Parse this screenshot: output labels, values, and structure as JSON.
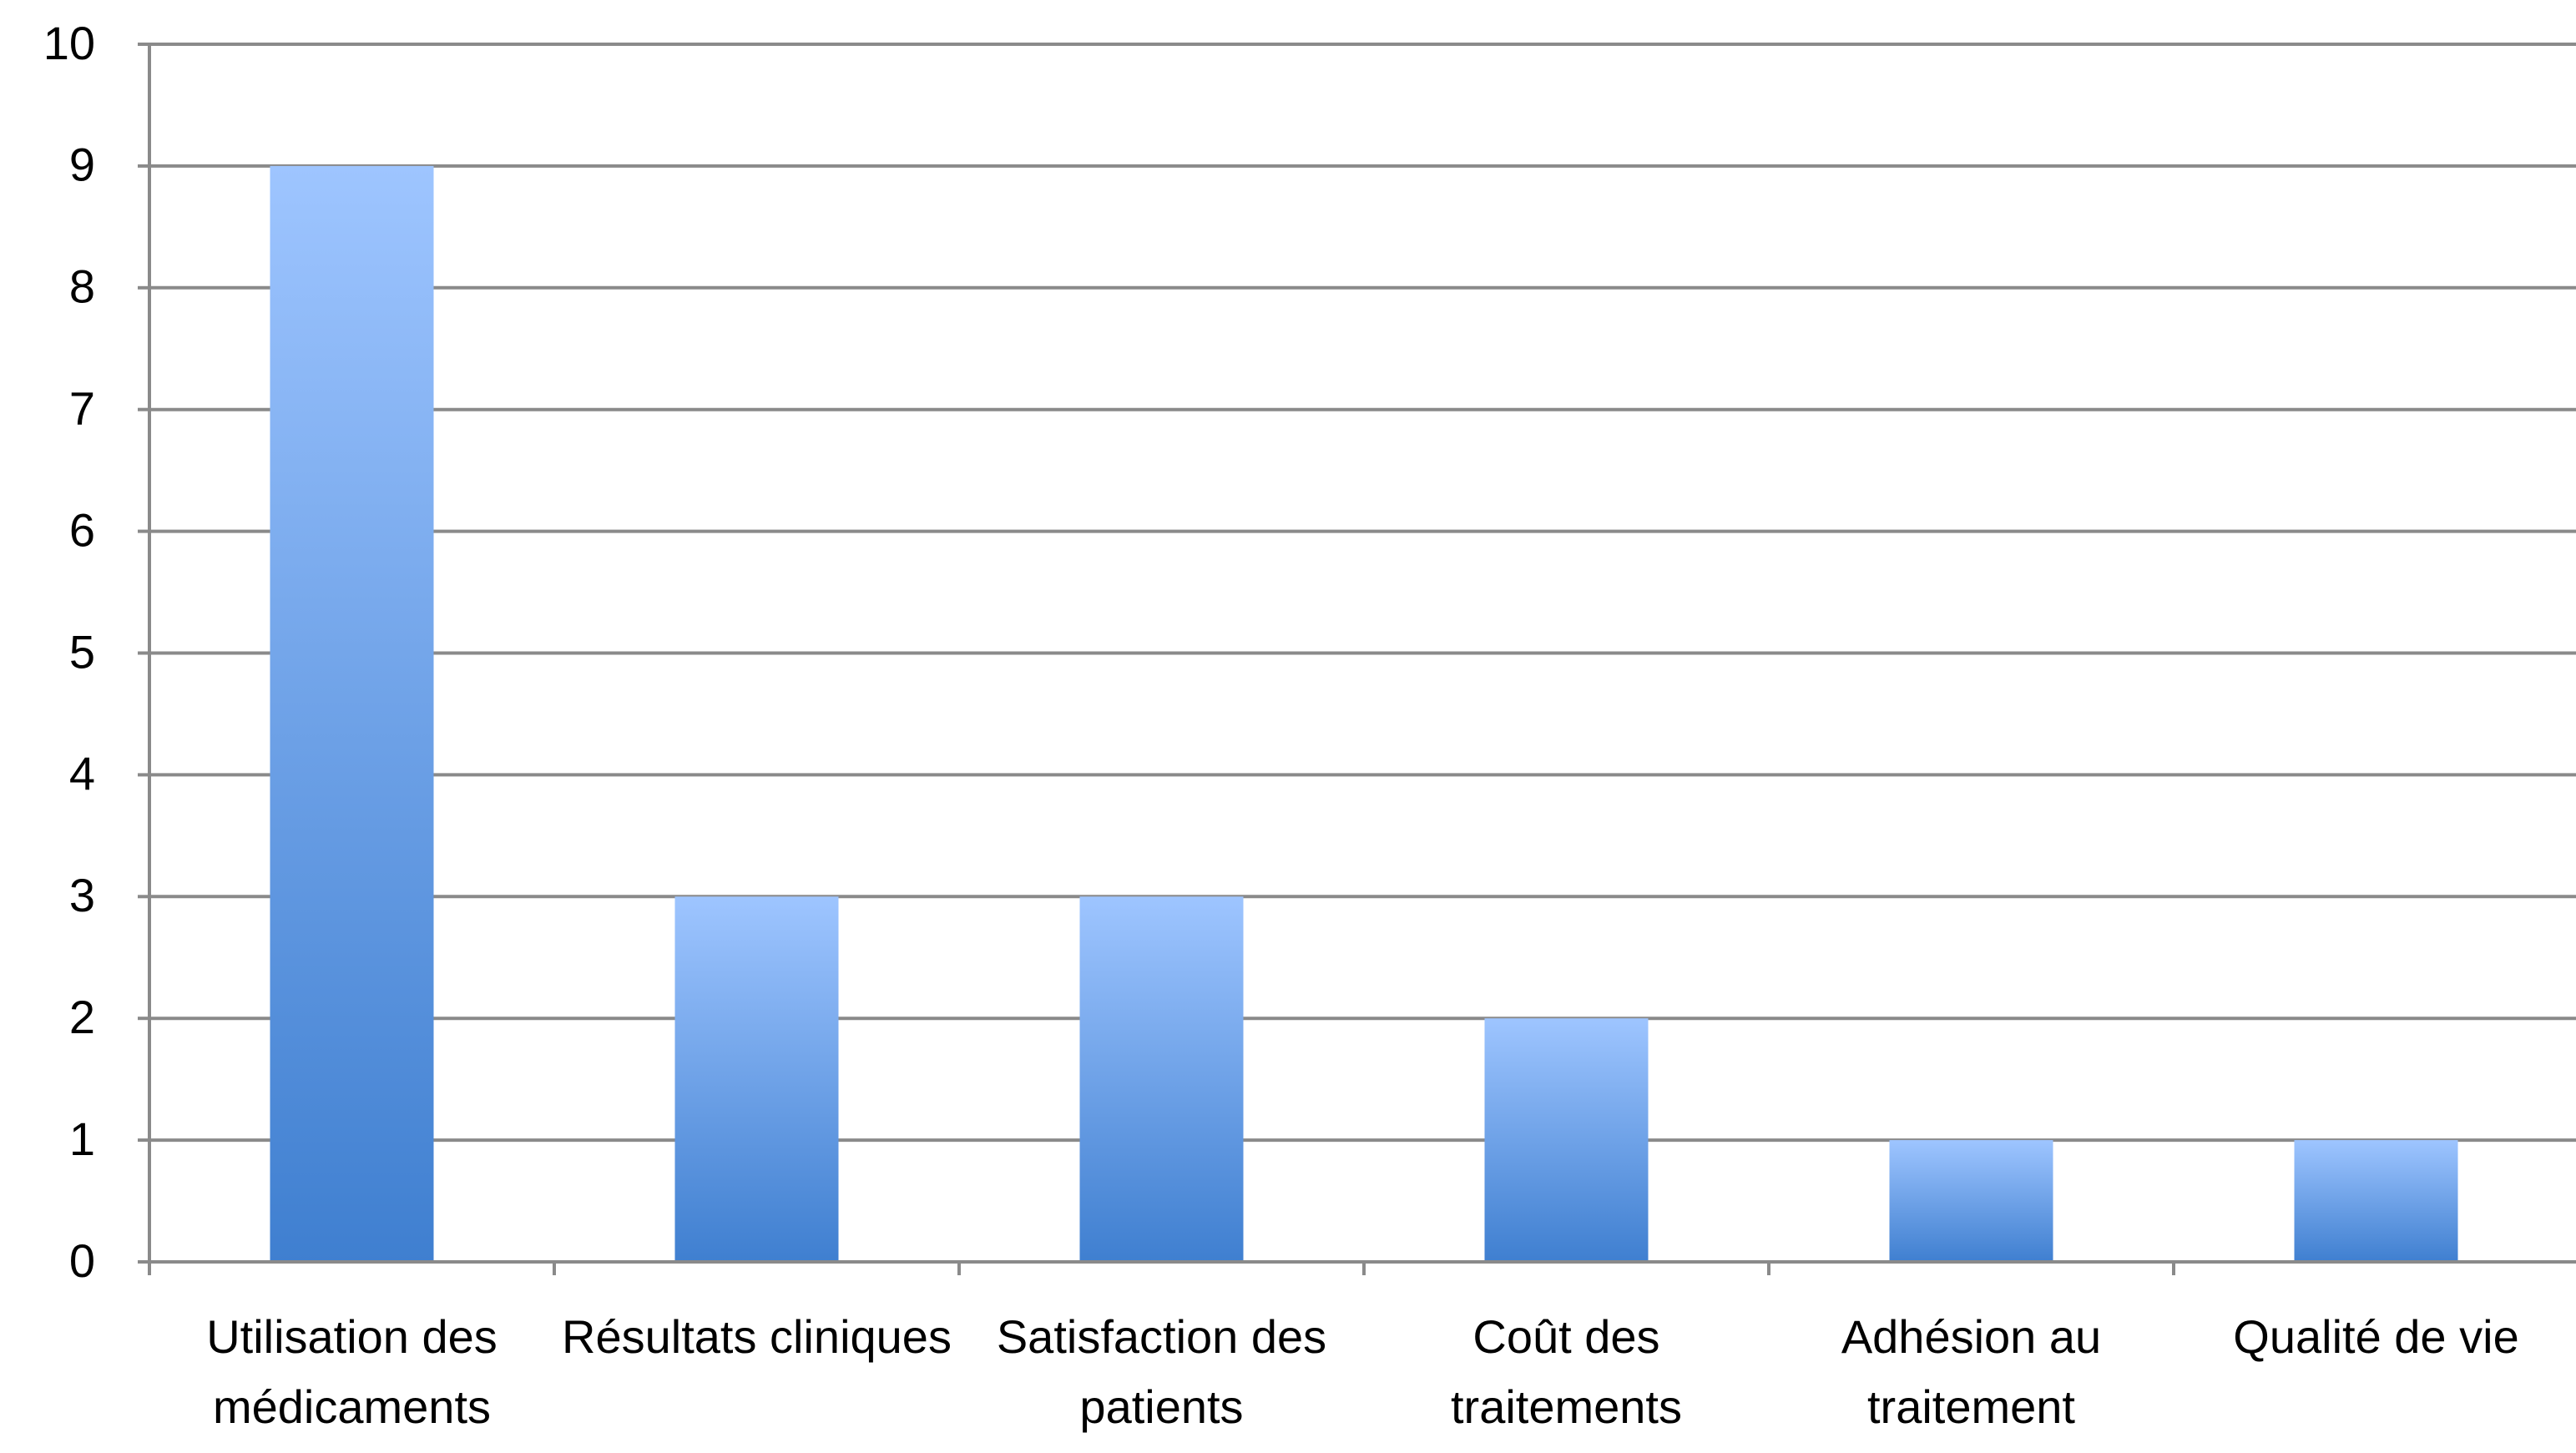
{
  "chart_data": {
    "type": "bar",
    "categories": [
      "Utilisation des médicaments",
      "Résultats cliniques",
      "Satisfaction des patients",
      "Coût des traitements",
      "Adhésion au traitement",
      "Qualité de vie"
    ],
    "values": [
      9,
      3,
      3,
      2,
      1,
      1
    ],
    "color": "#5b93dc",
    "ylim": [
      0,
      10
    ],
    "yticks": [
      0,
      1,
      2,
      3,
      4,
      5,
      6,
      7,
      8,
      9,
      10
    ],
    "grid": true
  }
}
